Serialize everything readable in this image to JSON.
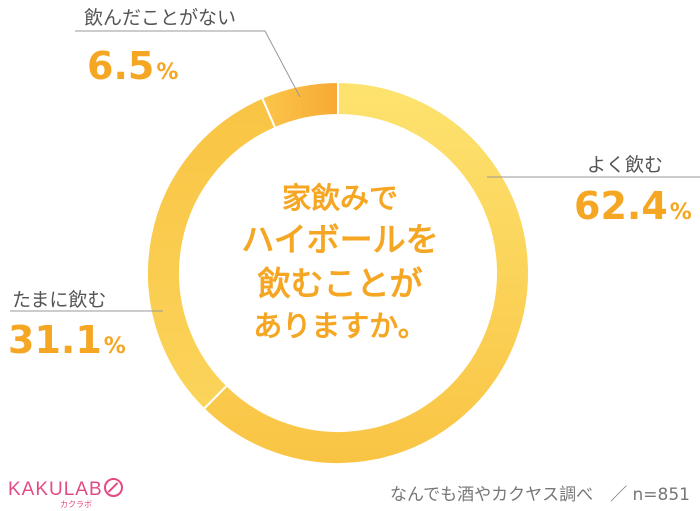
{
  "chart_data": {
    "type": "pie",
    "donut": true,
    "title_lines": [
      "家飲みで",
      "ハイボールを",
      "飲むことが",
      "ありますか。"
    ],
    "slices": [
      {
        "label": "よく飲む",
        "value": 62.4,
        "value_text": "62.4",
        "color": "#fbd84a"
      },
      {
        "label": "たまに飲む",
        "value": 31.1,
        "value_text": "31.1",
        "color": "#f8bf3c"
      },
      {
        "label": "飲んだことがない",
        "value": 6.5,
        "value_text": "6.5",
        "color": "#f7a934"
      }
    ],
    "unit": "%"
  },
  "footer": {
    "source": "なんでも酒やカクヤス調べ　／ n=851"
  },
  "logo": {
    "text": "KAKULAB",
    "sub": "カクラボ"
  },
  "colors": {
    "accent": "#f5a623",
    "brand": "#e24a86"
  }
}
